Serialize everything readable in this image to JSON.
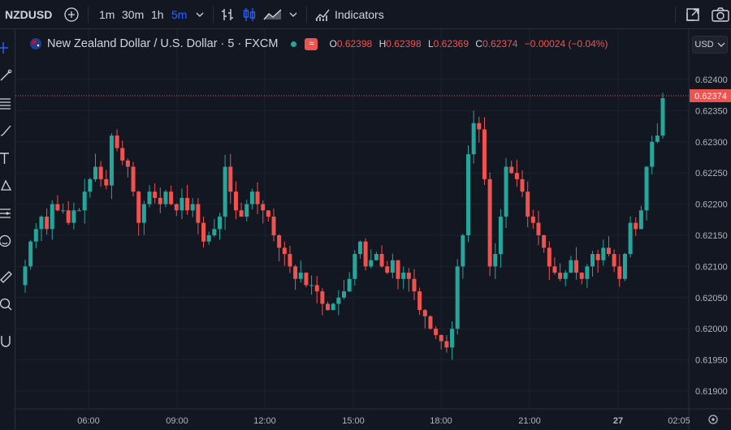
{
  "toolbar": {
    "symbol": "NZDUSD",
    "intervals": [
      "1m",
      "30m",
      "1h",
      "5m"
    ],
    "active_interval": "5m",
    "indicators_label": "Indicators"
  },
  "legend": {
    "title": "New Zealand Dollar / U.S. Dollar · 5 · FXCM",
    "o_key": "O",
    "o_val": "0.62398",
    "h_key": "H",
    "h_val": "0.62398",
    "l_key": "L",
    "l_val": "0.62369",
    "c_key": "C",
    "c_val": "0.62374",
    "change": "−0.00024 (−0.04%)"
  },
  "currency_label": "USD",
  "colors": {
    "up": "#26a69a",
    "down": "#ef5350",
    "accent": "#2962ff",
    "background": "#131722"
  },
  "chart_data": {
    "type": "candlestick",
    "y_ticks": [
      "0.62400",
      "0.62350",
      "0.62300",
      "0.62250",
      "0.62200",
      "0.62150",
      "0.62100",
      "0.62050",
      "0.62000",
      "0.61950",
      "0.61900"
    ],
    "x_ticks": [
      "06:00",
      "09:00",
      "12:00",
      "15:00",
      "18:00",
      "21:00",
      "27",
      "02:05"
    ],
    "last_price": "0.62374",
    "ylim": [
      0.61885,
      0.6244
    ],
    "series_close": [
      0.621,
      0.6214,
      0.6216,
      0.6218,
      0.6216,
      0.622,
      0.6219,
      0.6219,
      0.6217,
      0.6219,
      0.6219,
      0.6222,
      0.6224,
      0.6226,
      0.6224,
      0.6223,
      0.6231,
      0.6229,
      0.6227,
      0.6226,
      0.6222,
      0.6217,
      0.622,
      0.6222,
      0.6221,
      0.622,
      0.6222,
      0.622,
      0.6219,
      0.6221,
      0.6219,
      0.622,
      0.6217,
      0.6214,
      0.6215,
      0.6216,
      0.6218,
      0.6226,
      0.6222,
      0.6219,
      0.6218,
      0.622,
      0.6222,
      0.622,
      0.6219,
      0.6218,
      0.6215,
      0.6213,
      0.6212,
      0.621,
      0.6208,
      0.6209,
      0.6207,
      0.6207,
      0.6206,
      0.6204,
      0.6203,
      0.6204,
      0.6205,
      0.6206,
      0.6208,
      0.6212,
      0.6214,
      0.621,
      0.6211,
      0.6212,
      0.621,
      0.6209,
      0.6211,
      0.6208,
      0.6209,
      0.6208,
      0.6206,
      0.6203,
      0.6202,
      0.62,
      0.6199,
      0.6198,
      0.6197,
      0.62,
      0.621,
      0.6215,
      0.6228,
      0.6233,
      0.6232,
      0.6224,
      0.621,
      0.6212,
      0.6218,
      0.6226,
      0.6225,
      0.6224,
      0.6222,
      0.6218,
      0.6217,
      0.6215,
      0.6213,
      0.621,
      0.6209,
      0.6208,
      0.6209,
      0.6211,
      0.6209,
      0.6208,
      0.621,
      0.6212,
      0.6211,
      0.6213,
      0.6212,
      0.621,
      0.6208,
      0.6212,
      0.6217,
      0.6216,
      0.6219,
      0.6226,
      0.623,
      0.6231,
      0.6237
    ]
  }
}
